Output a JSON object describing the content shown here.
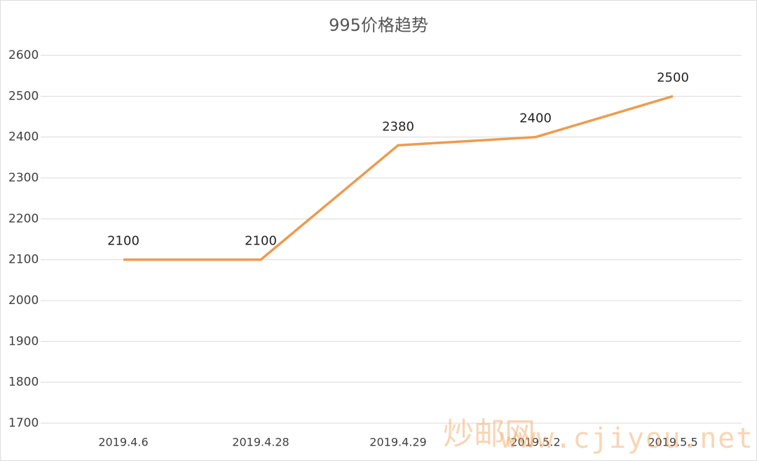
{
  "chart_data": {
    "type": "line",
    "title": "995价格趋势",
    "categories": [
      "2019.4.6",
      "2019.4.28",
      "2019.4.29",
      "2019.5.2",
      "2019.5.5"
    ],
    "values": [
      2100,
      2100,
      2380,
      2400,
      2500
    ],
    "color": "#ed9b4f",
    "ylim": [
      1700,
      2600
    ],
    "yticks": [
      1700,
      1800,
      1900,
      2000,
      2100,
      2200,
      2300,
      2400,
      2500,
      2600
    ],
    "grid": true,
    "data_labels": true
  },
  "watermark": {
    "site": "炒邮网",
    "url": "www.cjiyou.net"
  }
}
